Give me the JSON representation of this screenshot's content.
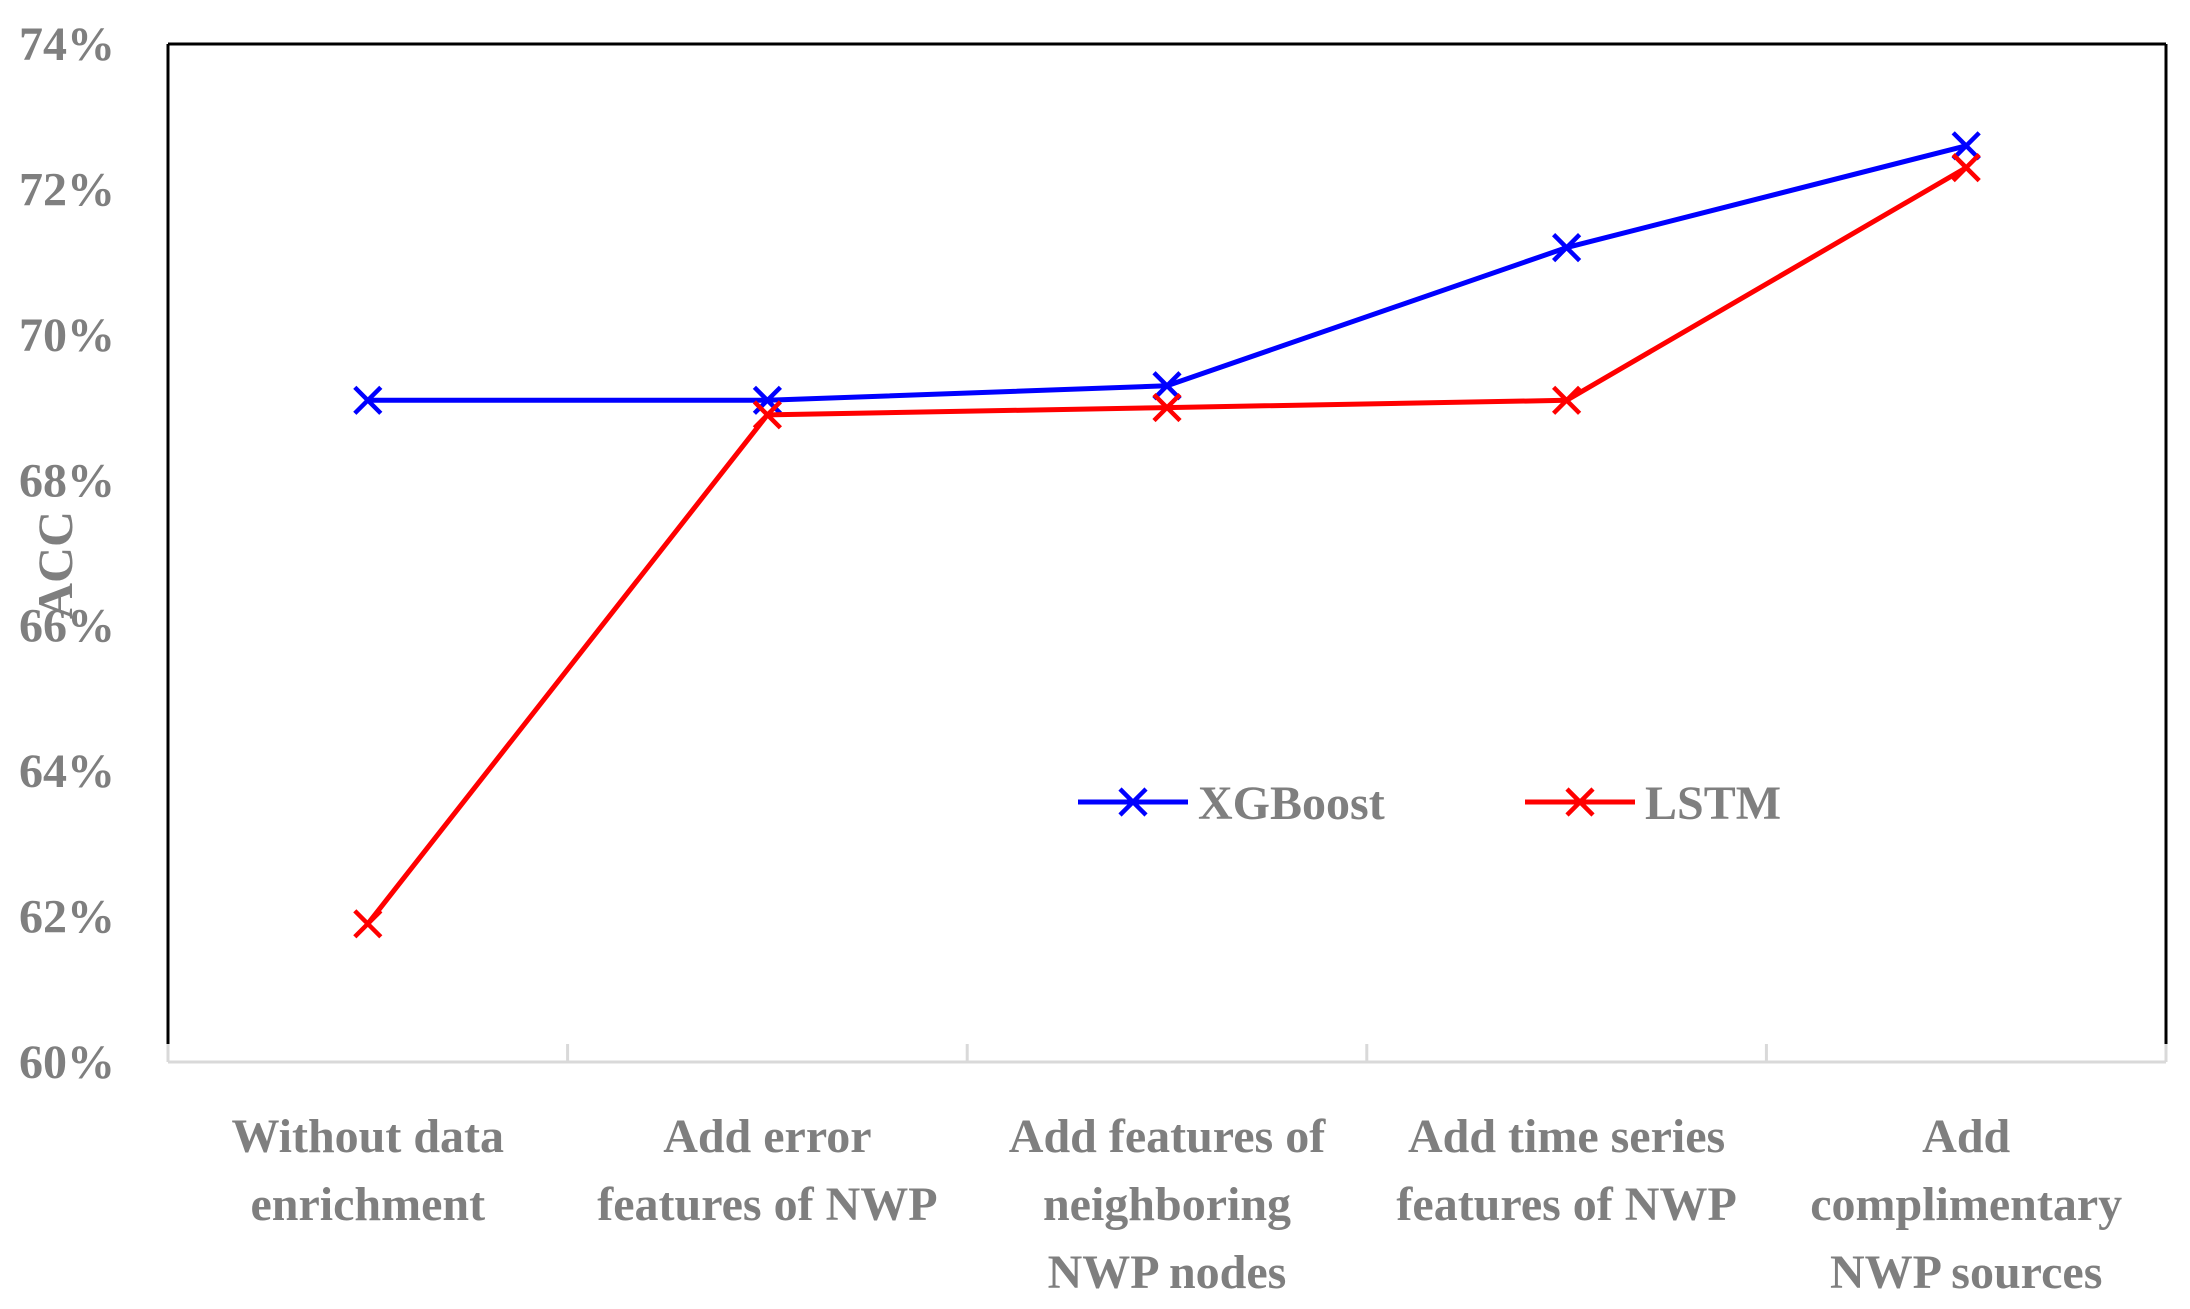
{
  "chart_data": {
    "type": "line",
    "title": "",
    "xlabel": "",
    "ylabel": "ACC",
    "ylim": [
      0.6,
      0.74
    ],
    "yticks": [
      0.6,
      0.62,
      0.64,
      0.66,
      0.68,
      0.7,
      0.72,
      0.74
    ],
    "ytick_labels": [
      "60%",
      "62%",
      "64%",
      "66%",
      "68%",
      "70%",
      "72%",
      "74%"
    ],
    "categories": [
      [
        "Without data",
        "enrichment"
      ],
      [
        "Add error",
        "features of NWP"
      ],
      [
        "Add features of",
        "neighboring",
        "NWP nodes"
      ],
      [
        "Add time series",
        "features of NWP"
      ],
      [
        "Add",
        "complimentary",
        "NWP sources"
      ]
    ],
    "series": [
      {
        "name": "XGBoost",
        "color": "#0000ff",
        "marker": "x",
        "values": [
          0.691,
          0.691,
          0.693,
          0.712,
          0.726
        ]
      },
      {
        "name": "LSTM",
        "color": "#ff0000",
        "marker": "x",
        "values": [
          0.619,
          0.689,
          0.69,
          0.691,
          0.723
        ]
      }
    ],
    "grid": false,
    "legend_placement": "center"
  }
}
